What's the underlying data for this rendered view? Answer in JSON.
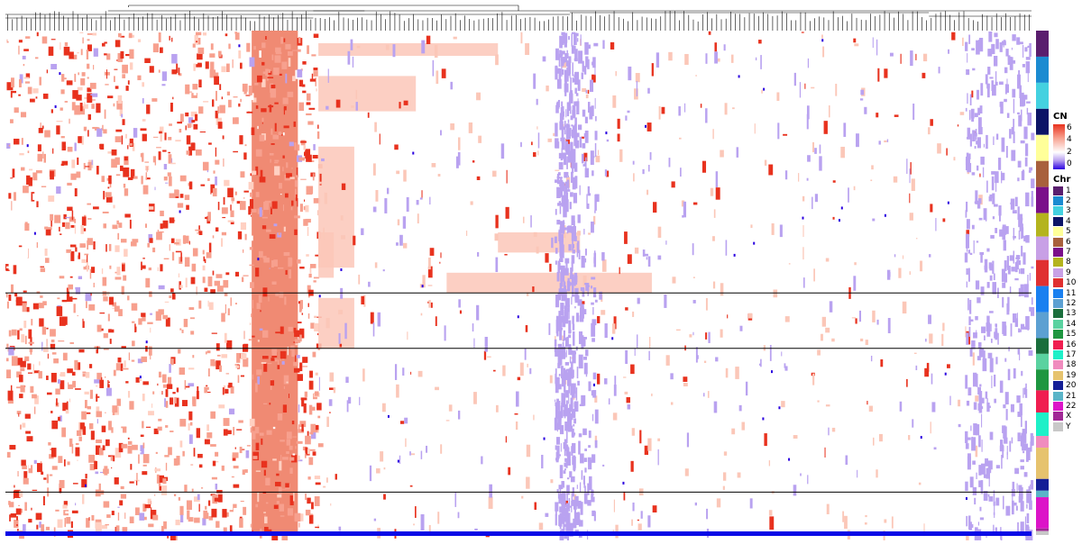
{
  "chart_data": {
    "type": "heatmap",
    "title": "",
    "xlabel": "",
    "ylabel": "",
    "dendrogram": "top",
    "cn_scale": {
      "title": "CN",
      "ticks": [
        "6",
        "4",
        "2",
        "0"
      ],
      "colors": {
        "high": "#e8321e",
        "mid": "#ffffff",
        "low": "#2a00e0"
      }
    },
    "chromosome_track": {
      "title": "Chr",
      "labels": [
        "1",
        "2",
        "3",
        "4",
        "5",
        "6",
        "7",
        "8",
        "9",
        "10",
        "11",
        "12",
        "13",
        "14",
        "15",
        "16",
        "17",
        "18",
        "19",
        "20",
        "21",
        "22",
        "X",
        "Y"
      ],
      "colors": [
        "#5a1e6e",
        "#1b8bd1",
        "#44d1e0",
        "#0c1466",
        "#ffff99",
        "#a8603c",
        "#7a0f8a",
        "#b4b41e",
        "#c8a0e6",
        "#e03030",
        "#1a80f0",
        "#5ca0d2",
        "#1a6e3c",
        "#5ad2a0",
        "#1e9640",
        "#f01e50",
        "#1ef0c8",
        "#f08cbe",
        "#e6c36e",
        "#141e96",
        "#5ab4c8",
        "#dc14c8",
        "#a02896",
        "#c8c8c8"
      ]
    },
    "row_groups_relative_height": [
      1,
      1,
      1,
      1,
      1,
      1,
      1,
      0.9,
      0.9,
      1,
      1,
      1,
      0.6,
      0.6,
      0.8,
      0.85,
      0.9,
      0.45,
      1.2,
      0.45,
      0.25,
      1.2,
      0.1,
      0.15
    ],
    "cluster_breaks_relative": [
      0.52,
      0.63,
      0.915
    ]
  }
}
